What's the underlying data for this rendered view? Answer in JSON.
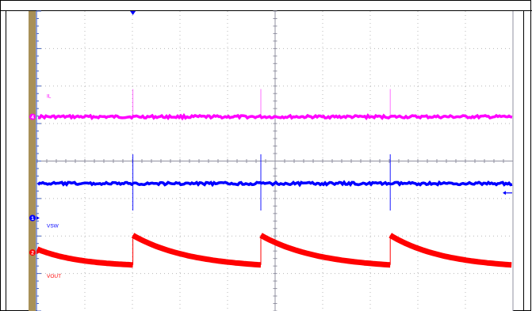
{
  "chart_data": {
    "type": "line",
    "title": "",
    "xlabel": "",
    "ylabel": "",
    "grid": true,
    "x_divisions": 10,
    "y_divisions": 8,
    "series": [
      {
        "name": "IL",
        "channel": "4",
        "color": "#ff00ff",
        "level_div": 2.82,
        "spike_times_div": [
          2.01,
          4.7,
          7.42
        ],
        "spike_height_div": 0.74
      },
      {
        "name": "VSW",
        "channel": "1",
        "color": "#0000ff",
        "level_div": 4.6,
        "marker_level_div": 5.52,
        "spike_times_div": [
          2.01,
          4.7,
          7.42
        ],
        "spike_height_up_div": 0.78,
        "spike_height_down_div": 0.72
      },
      {
        "name": "VOUT",
        "channel": "2",
        "color": "#ff0000",
        "marker_level_div": 6.44,
        "segments_div": [
          {
            "x": [
              0.0,
              2.01
            ],
            "y": [
              6.35,
              6.77
            ]
          },
          {
            "x": [
              2.01,
              4.7
            ],
            "y": [
              5.98,
              6.77
            ]
          },
          {
            "x": [
              4.7,
              7.42
            ],
            "y": [
              5.98,
              6.77
            ]
          },
          {
            "x": [
              7.42,
              9.97
            ],
            "y": [
              5.98,
              6.77
            ]
          }
        ]
      }
    ],
    "trigger_marker": {
      "x_div": 2.01,
      "color": "#0000ff"
    },
    "trigger_level_marker": {
      "y_div": 4.85,
      "color": "#0000ff"
    }
  }
}
